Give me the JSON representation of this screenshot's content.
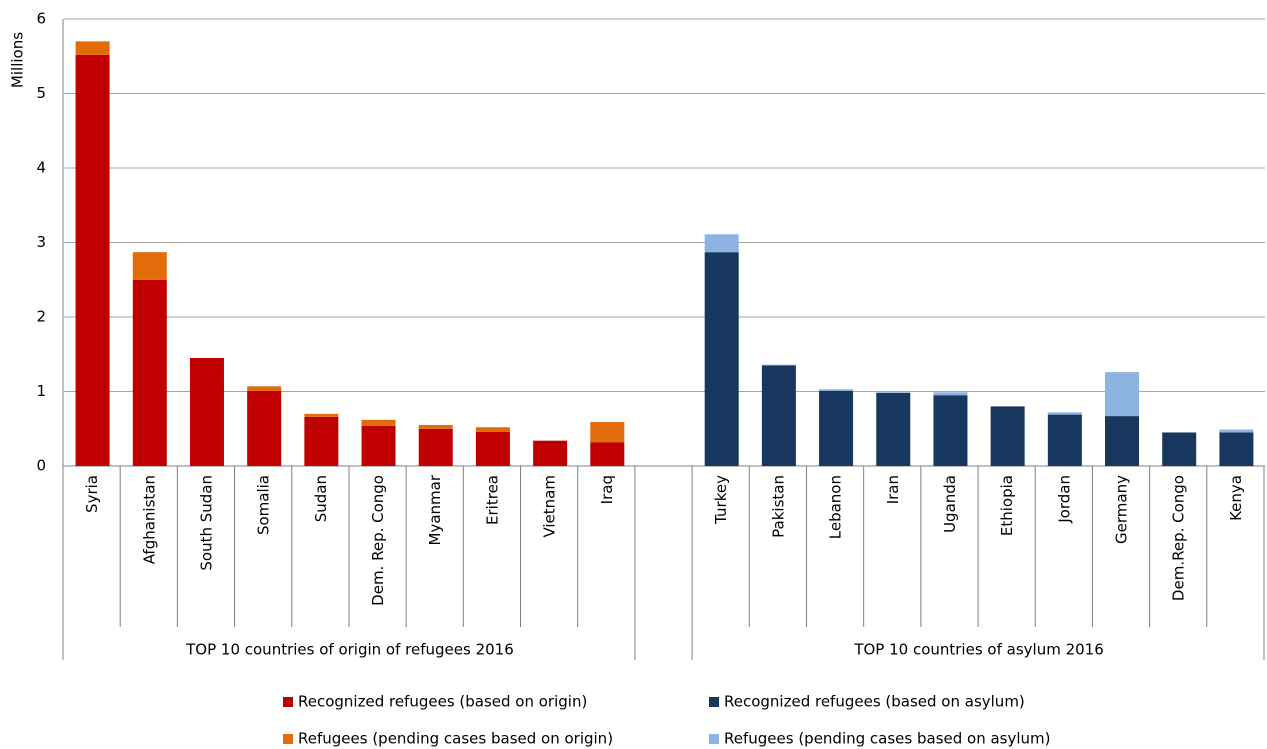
{
  "chart_data": {
    "type": "stacked-bar",
    "y_label": "Millions",
    "ylim": [
      0,
      6
    ],
    "yticks": [
      0,
      1,
      2,
      3,
      4,
      5,
      6
    ],
    "grid": true,
    "categories": [
      "Syria",
      "Afghanistan",
      "South Sudan",
      "Somalia",
      "Sudan",
      "Dem. Rep. Congo",
      "Myanmar",
      "Eritrea",
      "Vietnam",
      "Iraq",
      null,
      "Turkey",
      "Pakistan",
      "Lebanon",
      "Iran",
      "Uganda",
      "Ethiopia",
      "Jordan",
      "Germany",
      "Dem.Rep. Congo",
      "Kenya"
    ],
    "groups": [
      "TOP 10 countries of origin of refugees 2016",
      "TOP 10 countries of asylum 2016"
    ],
    "series": [
      {
        "name": "Recognized refugees (based on origin)",
        "color": "#c00000",
        "values": [
          5.52,
          2.5,
          1.45,
          1.01,
          0.66,
          0.54,
          0.5,
          0.46,
          0.34,
          0.32,
          null,
          null,
          null,
          null,
          null,
          null,
          null,
          null,
          null,
          null,
          null
        ]
      },
      {
        "name": "Refugees (pending cases based on origin)",
        "color": "#e36c0a",
        "values": [
          0.18,
          0.37,
          0,
          0.06,
          0.04,
          0.08,
          0.05,
          0.06,
          0,
          0.27,
          null,
          null,
          null,
          null,
          null,
          null,
          null,
          null,
          null,
          null,
          null
        ]
      },
      {
        "name": "Recognized refugees (based on asylum)",
        "color": "#17375e",
        "values": [
          null,
          null,
          null,
          null,
          null,
          null,
          null,
          null,
          null,
          null,
          null,
          2.87,
          1.35,
          1.01,
          0.98,
          0.95,
          0.8,
          0.69,
          0.67,
          0.45,
          0.45
        ]
      },
      {
        "name": "Refugees (pending cases based on asylum)",
        "color": "#8db3e2",
        "values": [
          null,
          null,
          null,
          null,
          null,
          null,
          null,
          null,
          null,
          null,
          null,
          0.24,
          0.01,
          0.02,
          0.01,
          0.04,
          0,
          0.03,
          0.59,
          0,
          0.04
        ]
      }
    ]
  }
}
